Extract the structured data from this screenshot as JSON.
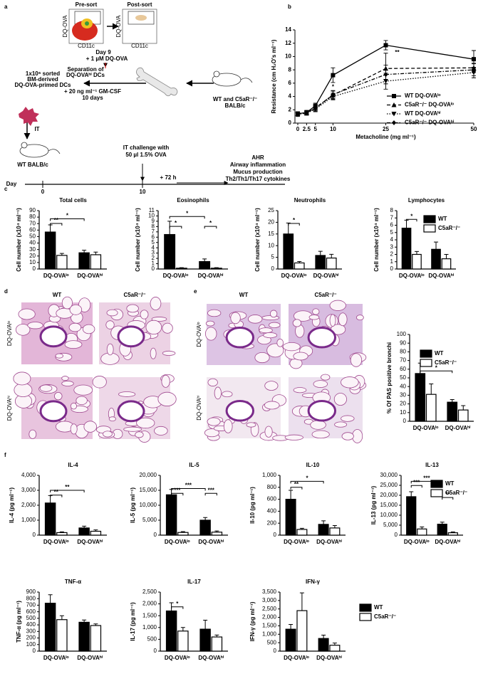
{
  "panel_labels": [
    "a",
    "b",
    "c",
    "d",
    "e",
    "f"
  ],
  "schematic": {
    "pre_sort": "Pre-sort",
    "post_sort": "Post-sort",
    "flow_y": "DQ-OVA",
    "flow_x": "CD11c",
    "day9": "Day 9",
    "dq_ova": "+ 1 µM DQ-OVA",
    "separation": [
      "Separation of",
      "DQ-OVAʰⁱ DCs"
    ],
    "sorted": [
      "1x10⁶ sorted",
      "BM-derived",
      "DQ-OVA-primed DCs"
    ],
    "gmcsf": [
      "+ 20 ng ml⁻¹ GM-CSF",
      "10 days"
    ],
    "donor": [
      "WT and C5aR⁻/⁻",
      "BALB/c"
    ],
    "it": "IT",
    "recipient": "WT BALB/c",
    "day": "Day",
    "day0": "0",
    "day10": "10",
    "challenge": "IT challenge with",
    "challenge_dose": "50 µl  1.5% OVA",
    "plus72": "+ 72 h",
    "readouts": [
      "AHR",
      "Airway inflammation",
      "Mucus production",
      "Th2/Th1/Th17 cytokines"
    ]
  },
  "histology": {
    "d": {
      "columns": [
        "WT",
        "C5aR⁻/⁻"
      ],
      "rows": [
        "DQ-OVAˡᵒ",
        "DQ-OVAʰⁱ"
      ]
    },
    "e": {
      "columns": [
        "WT",
        "C5aR⁻/⁻"
      ],
      "rows": [
        "DQ-OVAˡᵒ",
        "DQ-OVAʰⁱ"
      ]
    }
  },
  "chart_data": [
    {
      "type": "line",
      "y_label": "Resistance (cm H₂O's ml⁻¹)",
      "x_label": "Metacholine (mg ml⁻¹)",
      "x": [
        0,
        2.5,
        5,
        10,
        25,
        50
      ],
      "xlim": [
        0,
        50
      ],
      "xticks": [
        0,
        2.5,
        5,
        10,
        25,
        50
      ],
      "ylim": [
        0,
        14
      ],
      "yticks": [
        0,
        2,
        4,
        6,
        8,
        10,
        12,
        14
      ],
      "legend": "lower right",
      "annotations": [
        "**",
        "*"
      ],
      "series": [
        {
          "name": "WT DQ-OVAˡᵒ",
          "color": "#000000",
          "style": "solid",
          "marker": "square",
          "values": [
            1.4,
            1.6,
            2.6,
            7.2,
            11.7,
            9.6
          ],
          "errors": [
            0.3,
            0.3,
            0.4,
            1.1,
            0.7,
            1.3
          ]
        },
        {
          "name": "C5aR⁻/⁻ DQ-OVAˡᵒ",
          "color": "#000000",
          "style": "dashed",
          "marker": "triangle",
          "values": [
            1.4,
            1.5,
            2.3,
            4.2,
            8.2,
            8.3
          ],
          "errors": [
            0.3,
            0.3,
            0.4,
            0.6,
            2.3,
            0.7
          ]
        },
        {
          "name": "WT DQ-OVAʰⁱ",
          "color": "#000000",
          "style": "dotted",
          "marker": "triangle-down",
          "values": [
            1.3,
            1.5,
            2.1,
            4.0,
            6.3,
            7.6
          ],
          "errors": [
            0.3,
            0.3,
            0.4,
            0.5,
            1.2,
            0.8
          ]
        },
        {
          "name": "C5aR⁻/⁻ DQ-OVAʰⁱ",
          "color": "#000000",
          "style": "dashdot",
          "marker": "diamond",
          "values": [
            1.4,
            1.6,
            2.2,
            4.3,
            7.3,
            8.0
          ],
          "errors": [
            0.3,
            0.3,
            0.4,
            0.6,
            1.4,
            0.9
          ]
        }
      ]
    },
    {
      "type": "bar",
      "title": "Total cells",
      "y_label": "Cell number (x10⁴ ml⁻¹)",
      "categories": [
        "DQ-OVAˡᵒ",
        "DQ-OVAʰⁱ"
      ],
      "ylim": [
        0,
        90
      ],
      "yticks": [
        0,
        10,
        20,
        30,
        40,
        50,
        60,
        70,
        80,
        90
      ],
      "annotations": [
        "**",
        "*"
      ],
      "series": [
        {
          "color": "#000000",
          "values": [
            57,
            25
          ],
          "errors": [
            11,
            4
          ]
        },
        {
          "color": "#ffffff",
          "values": [
            21,
            22
          ],
          "errors": [
            3,
            4
          ]
        }
      ]
    },
    {
      "type": "bar",
      "title": "Eosinophils",
      "y_label": "Cell number (x10⁴ ml⁻¹)",
      "categories": [
        "DQ-OVAˡᵒ",
        "DQ-OVAʰⁱ"
      ],
      "ylim": [
        0,
        11
      ],
      "yticks": [
        0,
        1,
        2,
        3,
        4,
        5,
        6,
        7,
        8,
        9,
        10,
        11
      ],
      "annotations": [
        "*",
        "*",
        "*"
      ],
      "series": [
        {
          "color": "#000000",
          "values": [
            6.5,
            1.4
          ],
          "errors": [
            2.5,
            0.5
          ]
        },
        {
          "color": "#ffffff",
          "values": [
            0.15,
            0.15
          ],
          "errors": [
            0.1,
            0.1
          ]
        }
      ]
    },
    {
      "type": "bar",
      "title": "Neutrophils",
      "y_label": "Cell number (x10⁴ ml⁻¹)",
      "categories": [
        "DQ-OVAˡᵒ",
        "DQ-OVAʰⁱ"
      ],
      "ylim": [
        0,
        25
      ],
      "yticks": [
        0,
        5,
        10,
        15,
        20,
        25
      ],
      "annotations": [
        "*"
      ],
      "series": [
        {
          "color": "#000000",
          "values": [
            15,
            5.8
          ],
          "errors": [
            4.7,
            1.8
          ]
        },
        {
          "color": "#ffffff",
          "values": [
            2.6,
            4.7
          ],
          "errors": [
            0.6,
            1.6
          ]
        }
      ]
    },
    {
      "type": "bar",
      "title": "Lymphocytes",
      "y_label": "Cell number (x10⁴ ml⁻¹)",
      "categories": [
        "DQ-OVAˡᵒ",
        "DQ-OVAʰⁱ"
      ],
      "ylim": [
        0,
        8
      ],
      "yticks": [
        0,
        1,
        2,
        3,
        4,
        5,
        6,
        7,
        8
      ],
      "annotations": [
        "*"
      ],
      "legend": "upper right",
      "series": [
        {
          "name": "WT",
          "color": "#000000",
          "values": [
            5.6,
            2.7
          ],
          "errors": [
            1.1,
            1.0
          ]
        },
        {
          "name": "C5aR⁻/⁻",
          "color": "#ffffff",
          "values": [
            2.0,
            1.4
          ],
          "errors": [
            0.4,
            0.6
          ]
        }
      ]
    },
    {
      "type": "bar",
      "y_label": "% Of PAS positive bronchi",
      "categories": [
        "DQ-OVAˡᵒ",
        "DQ-OVAʰⁱ"
      ],
      "ylim": [
        0,
        100
      ],
      "yticks": [
        0,
        10,
        20,
        30,
        40,
        50,
        60,
        70,
        80,
        90,
        100
      ],
      "annotations": [
        "*"
      ],
      "legend": "top",
      "series": [
        {
          "name": "WT",
          "color": "#000000",
          "values": [
            55,
            22
          ],
          "errors": [
            12,
            3
          ]
        },
        {
          "name": "C5aR⁻/⁻",
          "color": "#ffffff",
          "values": [
            31,
            13
          ],
          "errors": [
            12,
            5
          ]
        }
      ]
    },
    {
      "type": "bar",
      "title": "IL-4",
      "y_label": "IL-4 (pg ml⁻¹)",
      "categories": [
        "DQ-OVAˡᵒ",
        "DQ-OVAʰⁱ"
      ],
      "ylim": [
        0,
        4000
      ],
      "yticks": [
        0,
        {
          "value": 1000,
          "label": "1,000"
        },
        {
          "value": 2000,
          "label": "2,000"
        },
        {
          "value": 3000,
          "label": "3,000"
        },
        {
          "value": 4000,
          "label": "4,000"
        }
      ],
      "annotations": [
        "**",
        "**"
      ],
      "series": [
        {
          "color": "#000000",
          "values": [
            2150,
            480
          ],
          "errors": [
            500,
            120
          ]
        },
        {
          "color": "#ffffff",
          "values": [
            170,
            260
          ],
          "errors": [
            50,
            90
          ]
        }
      ]
    },
    {
      "type": "bar",
      "title": "IL-5",
      "y_label": "IL-5 (pg ml⁻¹)",
      "categories": [
        "DQ-OVAˡᵒ",
        "DQ-OVAʰⁱ"
      ],
      "ylim": [
        0,
        20000
      ],
      "yticks": [
        0,
        {
          "value": 5000,
          "label": "5,000"
        },
        {
          "value": 10000,
          "label": "10,000"
        },
        {
          "value": 15000,
          "label": "15,000"
        },
        {
          "value": 20000,
          "label": "20,000"
        }
      ],
      "annotations": [
        "***",
        "***",
        "***"
      ],
      "series": [
        {
          "color": "#000000",
          "values": [
            13500,
            5000
          ],
          "errors": [
            1800,
            900
          ]
        },
        {
          "color": "#ffffff",
          "values": [
            900,
            1000
          ],
          "errors": [
            300,
            400
          ]
        }
      ]
    },
    {
      "type": "bar",
      "title": "IL-10",
      "y_label": "Il-10 (pg ml⁻¹)",
      "categories": [
        "DQ-OVAˡᵒ",
        "DQ-OVAʰⁱ"
      ],
      "ylim": [
        0,
        1000
      ],
      "yticks": [
        0,
        200,
        400,
        600,
        800,
        {
          "value": 1000,
          "label": "1,000"
        }
      ],
      "annotations": [
        "**",
        "*"
      ],
      "series": [
        {
          "color": "#000000",
          "values": [
            600,
            180
          ],
          "errors": [
            150,
            60
          ]
        },
        {
          "color": "#ffffff",
          "values": [
            95,
            120
          ],
          "errors": [
            20,
            40
          ]
        }
      ]
    },
    {
      "type": "bar",
      "title": "IL-13",
      "y_label": "IL-13 (pg ml⁻¹)",
      "categories": [
        "DQ-OVAˡᵒ",
        "DQ-OVAʰⁱ"
      ],
      "ylim": [
        0,
        30000
      ],
      "yticks": [
        0,
        {
          "value": 5000,
          "label": "5,000"
        },
        {
          "value": 10000,
          "label": "10,000"
        },
        {
          "value": 15000,
          "label": "15,000"
        },
        {
          "value": 20000,
          "label": "20,000"
        },
        {
          "value": 25000,
          "label": "25,000"
        },
        {
          "value": 30000,
          "label": "30,000"
        }
      ],
      "annotations": [
        "***",
        "***",
        "**"
      ],
      "legend": "upper right",
      "series": [
        {
          "name": "WT",
          "color": "#000000",
          "values": [
            19300,
            5500
          ],
          "errors": [
            2500,
            1000
          ]
        },
        {
          "name": "C5aR⁻/⁻",
          "color": "#ffffff",
          "values": [
            3100,
            1200
          ],
          "errors": [
            1000,
            400
          ]
        }
      ]
    },
    {
      "type": "bar",
      "title": "TNF-α",
      "y_label": "TNF-α (pg ml⁻¹)",
      "categories": [
        "DQ-OVAˡᵒ",
        "DQ-OVAʰⁱ"
      ],
      "ylim": [
        0,
        900
      ],
      "yticks": [
        0,
        100,
        200,
        300,
        400,
        500,
        600,
        700,
        800,
        900
      ],
      "annotations": [],
      "series": [
        {
          "color": "#000000",
          "values": [
            730,
            440
          ],
          "errors": [
            130,
            35
          ]
        },
        {
          "color": "#ffffff",
          "values": [
            480,
            390
          ],
          "errors": [
            60,
            25
          ]
        }
      ]
    },
    {
      "type": "bar",
      "title": "IL-17",
      "y_label": "IL-17 (pg ml⁻¹)",
      "categories": [
        "DQ-OVAˡᵒ",
        "DQ-OVAʰⁱ"
      ],
      "ylim": [
        0,
        2500
      ],
      "yticks": [
        0,
        500,
        {
          "value": 1000,
          "label": "1,000"
        },
        {
          "value": 1500,
          "label": "1,500"
        },
        {
          "value": 2000,
          "label": "2,000"
        },
        {
          "value": 2500,
          "label": "2,500"
        }
      ],
      "annotations": [
        "*"
      ],
      "series": [
        {
          "color": "#000000",
          "values": [
            1700,
            930
          ],
          "errors": [
            350,
            380
          ]
        },
        {
          "color": "#ffffff",
          "values": [
            850,
            600
          ],
          "errors": [
            150,
            80
          ]
        }
      ]
    },
    {
      "type": "bar",
      "title": "IFN-γ",
      "y_label": "IFN-γ (pg ml⁻¹)",
      "categories": [
        "DQ-OVAˡᵒ",
        "DQ-OVAʰⁱ"
      ],
      "ylim": [
        0,
        3500
      ],
      "yticks": [
        0,
        500,
        {
          "value": 1000,
          "label": "1,000"
        },
        {
          "value": 1500,
          "label": "1,500"
        },
        {
          "value": 2000,
          "label": "2,000"
        },
        {
          "value": 2500,
          "label": "2,500"
        },
        {
          "value": 3000,
          "label": "3,000"
        },
        {
          "value": 3500,
          "label": "3,500"
        }
      ],
      "annotations": [],
      "legend": "outside right",
      "series": [
        {
          "name": "WT",
          "color": "#000000",
          "values": [
            1300,
            750
          ],
          "errors": [
            280,
            200
          ]
        },
        {
          "name": "C5aR⁻/⁻",
          "color": "#ffffff",
          "values": [
            2400,
            350
          ],
          "errors": [
            1050,
            130
          ]
        }
      ]
    }
  ]
}
